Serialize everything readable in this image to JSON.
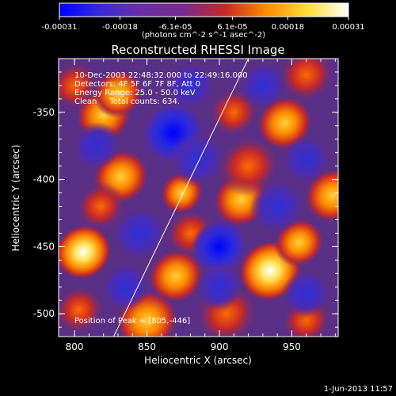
{
  "chart_data": {
    "type": "heatmap",
    "title": "Reconstructed RHESSI Image",
    "xlabel": "Heliocentric X (arcsec)",
    "ylabel": "Heliocentric Y (arcsec)",
    "xlim": [
      789,
      982
    ],
    "ylim": [
      -517,
      -310
    ],
    "xticks": [
      800,
      850,
      900,
      950
    ],
    "yticks": [
      -350,
      -400,
      -450,
      -500
    ],
    "colorbar": {
      "range": [
        -0.00031,
        0.00031
      ],
      "ticks": [
        -0.00031,
        -0.00018,
        -6.1e-05,
        6.1e-05,
        0.00018,
        0.00031
      ],
      "tick_labels": [
        "-0.00031",
        "-0.00018",
        "-6.1e-05",
        "6.1e-05",
        "0.00018",
        "0.00031"
      ],
      "unit_label": "(photons cm^-2 s^-1 asec^-2)",
      "colors": [
        "#0000ff",
        "#3a2bd8",
        "#6a2fa6",
        "#7a2a8e",
        "#c62828",
        "#ff8a00",
        "#ffdd33",
        "#ffffff"
      ]
    },
    "annotations": [
      "10-Dec-2003 22:48:32.000 to 22:49:16.000",
      "Detectors: 4F 5F 6F 7F 8F, Att 0",
      "Energy Range: 25.0 - 50.0 keV",
      "Clean     Total counts: 634.",
      "Position of Peak = [805,-446]"
    ],
    "limb_line": [
      [
        827,
        -517
      ],
      [
        920,
        -310
      ]
    ],
    "blobs": [
      {
        "x": 806,
        "y": -454,
        "v": 1.0,
        "s": 9
      },
      {
        "x": 874,
        "y": -410,
        "v": 0.85,
        "s": 7
      },
      {
        "x": 945,
        "y": -358,
        "v": 0.85,
        "s": 9
      },
      {
        "x": 935,
        "y": -468,
        "v": 0.9,
        "s": 10
      },
      {
        "x": 955,
        "y": -447,
        "v": 0.75,
        "s": 8
      },
      {
        "x": 820,
        "y": -352,
        "v": 0.8,
        "s": 9
      },
      {
        "x": 830,
        "y": -336,
        "v": 0.7,
        "s": 8
      },
      {
        "x": 832,
        "y": -398,
        "v": 0.65,
        "s": 9
      },
      {
        "x": 818,
        "y": -420,
        "v": 0.55,
        "s": 8
      },
      {
        "x": 915,
        "y": -415,
        "v": 0.7,
        "s": 9
      },
      {
        "x": 920,
        "y": -390,
        "v": 0.5,
        "s": 10
      },
      {
        "x": 978,
        "y": -412,
        "v": 0.75,
        "s": 9
      },
      {
        "x": 870,
        "y": -472,
        "v": 0.7,
        "s": 9
      },
      {
        "x": 880,
        "y": -440,
        "v": 0.45,
        "s": 8
      },
      {
        "x": 850,
        "y": -505,
        "v": 0.65,
        "s": 10
      },
      {
        "x": 803,
        "y": -497,
        "v": 0.55,
        "s": 8
      },
      {
        "x": 905,
        "y": -500,
        "v": 0.4,
        "s": 10
      },
      {
        "x": 910,
        "y": -350,
        "v": 0.6,
        "s": 8
      },
      {
        "x": 960,
        "y": -322,
        "v": 0.6,
        "s": 9
      },
      {
        "x": 800,
        "y": -330,
        "v": 0.45,
        "s": 8
      },
      {
        "x": 960,
        "y": -505,
        "v": 0.55,
        "s": 8
      },
      {
        "x": 868,
        "y": -365,
        "v": -0.9,
        "s": 10
      },
      {
        "x": 885,
        "y": -385,
        "v": -0.7,
        "s": 9
      },
      {
        "x": 900,
        "y": -450,
        "v": -0.75,
        "s": 9
      },
      {
        "x": 845,
        "y": -440,
        "v": -0.6,
        "s": 9
      },
      {
        "x": 940,
        "y": -420,
        "v": -0.55,
        "s": 9
      },
      {
        "x": 960,
        "y": -485,
        "v": -0.55,
        "s": 8
      },
      {
        "x": 835,
        "y": -480,
        "v": -0.45,
        "s": 8
      },
      {
        "x": 815,
        "y": -375,
        "v": -0.35,
        "s": 8
      },
      {
        "x": 960,
        "y": -385,
        "v": -0.45,
        "s": 8
      },
      {
        "x": 930,
        "y": -330,
        "v": -0.4,
        "s": 8
      },
      {
        "x": 880,
        "y": -330,
        "v": -0.35,
        "s": 8
      },
      {
        "x": 900,
        "y": -480,
        "v": -0.35,
        "s": 8
      }
    ]
  },
  "footer": {
    "date": "1-Jun-2013 11:57"
  }
}
